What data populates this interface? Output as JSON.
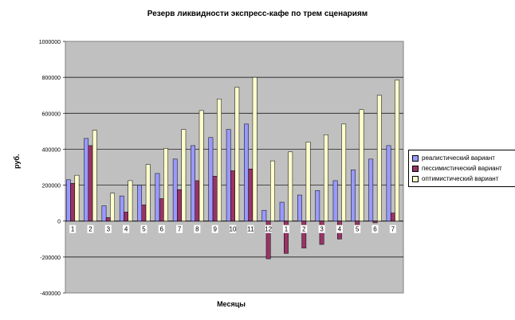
{
  "chart_data": {
    "type": "bar",
    "title": "Резерв ликвидности экспресс-кафе по трем сценариям",
    "xlabel": "Месяцы",
    "ylabel": "руб.",
    "ylim": [
      -400000,
      1000000
    ],
    "ytick_step": 200000,
    "ytick_labels": [
      "-400000",
      "-200000",
      "0",
      "200000",
      "400000",
      "600000",
      "800000",
      "1000000"
    ],
    "grid": true,
    "legend_position": "right",
    "categories": [
      "1",
      "2",
      "3",
      "4",
      "5",
      "6",
      "7",
      "8",
      "9",
      "10",
      "11",
      "12",
      "1",
      "2",
      "3",
      "4",
      "5",
      "6",
      "7"
    ],
    "series": [
      {
        "name": "реалистический вариант",
        "color": "#9999ff",
        "values": [
          230000,
          460000,
          85000,
          140000,
          200000,
          265000,
          345000,
          420000,
          465000,
          510000,
          540000,
          60000,
          105000,
          145000,
          170000,
          225000,
          285000,
          345000,
          420000
        ]
      },
      {
        "name": "пессимистический вариант",
        "color": "#993366",
        "values": [
          210000,
          420000,
          20000,
          50000,
          90000,
          125000,
          175000,
          225000,
          250000,
          280000,
          290000,
          -210000,
          -180000,
          -150000,
          -130000,
          -100000,
          -40000,
          -10000,
          45000
        ]
      },
      {
        "name": "оптимистический вариант",
        "color": "#ffffcc",
        "values": [
          255000,
          505000,
          155000,
          225000,
          315000,
          405000,
          510000,
          615000,
          680000,
          745000,
          800000,
          335000,
          385000,
          440000,
          480000,
          540000,
          620000,
          700000,
          785000
        ]
      }
    ]
  }
}
